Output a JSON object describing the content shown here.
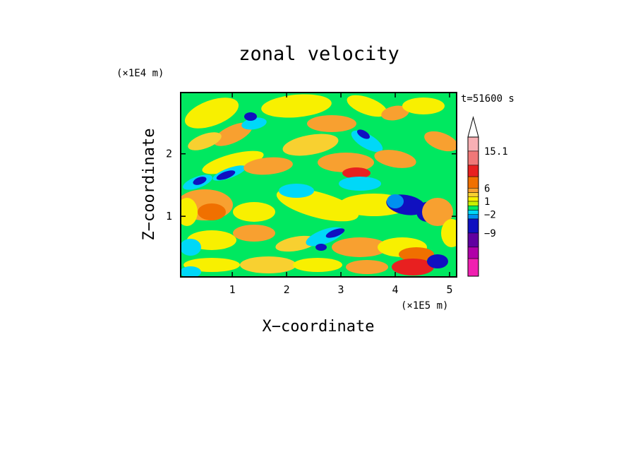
{
  "chart_data": {
    "type": "heatmap",
    "title": "zonal velocity",
    "xlabel": "X−coordinate",
    "ylabel": "Z−coordinate",
    "x_unit": "(×1E5 m)",
    "y_unit": "(×1E4 m)",
    "time_label": "t=51600 s",
    "xlim": [
      0.05,
      5.13
    ],
    "ylim": [
      0.03,
      2.98
    ],
    "x_ticks": [
      1,
      2,
      3,
      4,
      5
    ],
    "x_tick_labels": [
      "1",
      "2",
      "3",
      "4",
      "5"
    ],
    "y_ticks": [
      1,
      2
    ],
    "y_tick_labels": [
      "1",
      "2"
    ],
    "colorbar": {
      "levels_labeled": [
        "15.1",
        "6",
        "1",
        "−2",
        "−9"
      ],
      "colors_top_to_bottom": [
        "#f8b0b4",
        "#f07878",
        "#e82020",
        "#f07000",
        "#f8a030",
        "#f8d030",
        "#f8f000",
        "#c8f000",
        "#00e860",
        "#00d8f8",
        "#0090f0",
        "#1010c0",
        "#6000a0",
        "#b000a8",
        "#f020b0"
      ]
    }
  }
}
